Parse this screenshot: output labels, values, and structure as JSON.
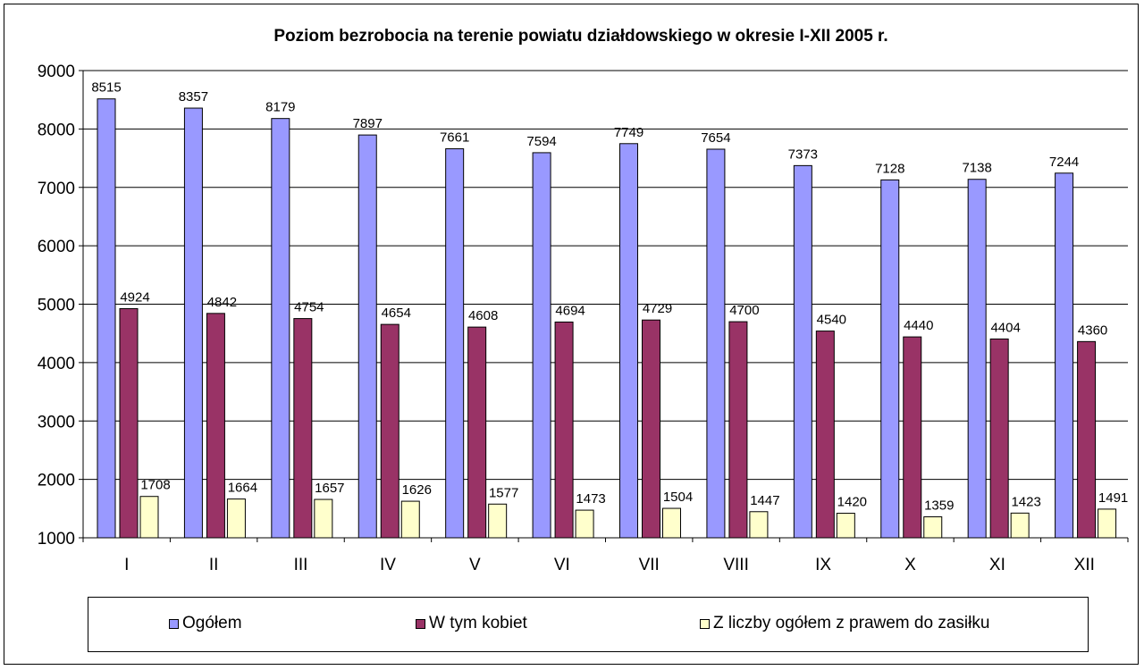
{
  "chart_data": {
    "type": "bar",
    "title": "Poziom bezrobocia na terenie powiatu działdowskiego w okresie I-XII 2005 r.",
    "categories": [
      "I",
      "II",
      "III",
      "IV",
      "V",
      "VI",
      "VII",
      "VIII",
      "IX",
      "X",
      "XI",
      "XII"
    ],
    "series": [
      {
        "name": "Ogółem",
        "color": "#9999ff",
        "values": [
          8515,
          8357,
          8179,
          7897,
          7661,
          7594,
          7749,
          7654,
          7373,
          7128,
          7138,
          7244
        ]
      },
      {
        "name": "W tym kobiet",
        "color": "#993366",
        "values": [
          4924,
          4842,
          4754,
          4654,
          4608,
          4694,
          4729,
          4700,
          4540,
          4440,
          4404,
          4360
        ]
      },
      {
        "name": "Z liczby ogółem z prawem do zasiłku",
        "color": "#ffffcc",
        "values": [
          1708,
          1664,
          1657,
          1626,
          1577,
          1473,
          1504,
          1447,
          1420,
          1359,
          1423,
          1491
        ]
      }
    ],
    "ylim": [
      1000,
      9000
    ],
    "yticks": [
      1000,
      2000,
      3000,
      4000,
      5000,
      6000,
      7000,
      8000,
      9000
    ],
    "grid": true,
    "legend_position": "bottom"
  }
}
